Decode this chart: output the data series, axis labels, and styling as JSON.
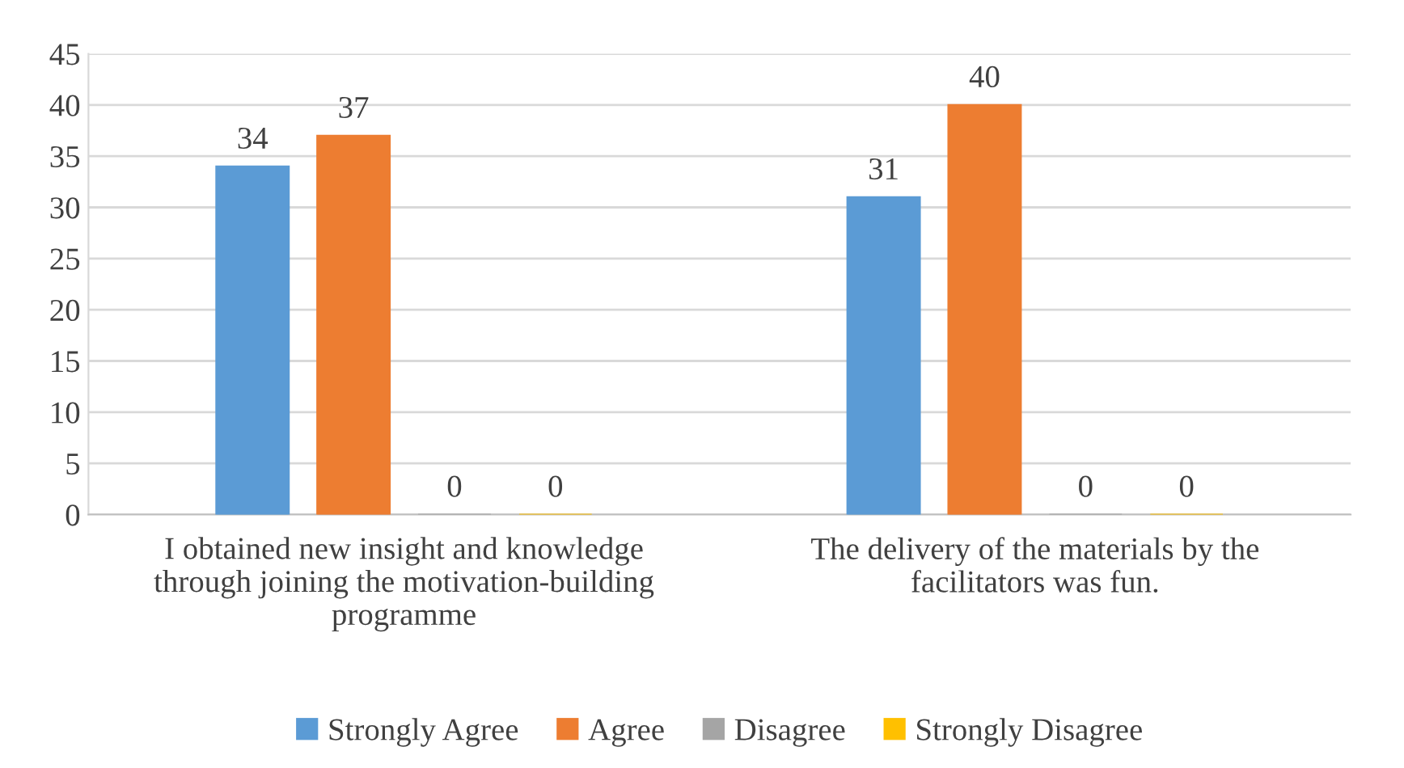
{
  "chart_data": {
    "type": "bar",
    "categories": [
      "I obtained new insight and knowledge\nthrough joining the motivation-building\nprogramme",
      "The delivery of the materials by the\nfacilitators was fun."
    ],
    "series": [
      {
        "name": "Strongly Agree",
        "color": "#5b9bd5",
        "values": [
          34,
          31
        ]
      },
      {
        "name": "Agree",
        "color": "#ed7d31",
        "values": [
          37,
          40
        ]
      },
      {
        "name": "Disagree",
        "color": "#a5a5a5",
        "values": [
          0,
          0
        ]
      },
      {
        "name": "Strongly Disagree",
        "color": "#ffc000",
        "values": [
          0,
          0
        ]
      }
    ],
    "ylim": [
      0,
      45
    ],
    "yticks": [
      0,
      5,
      10,
      15,
      20,
      25,
      30,
      35,
      40,
      45
    ],
    "grid": "y",
    "legend": "bottom",
    "data_labels": true
  }
}
